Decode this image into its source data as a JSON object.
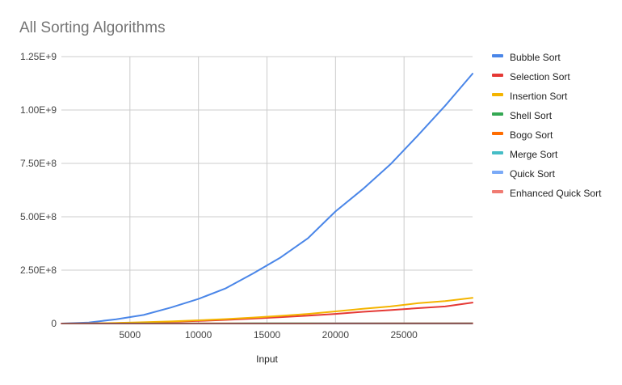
{
  "chart_data": {
    "type": "line",
    "title": "All Sorting Algorithms",
    "xlabel": "Input",
    "ylabel": "",
    "xlim": [
      0,
      30000
    ],
    "ylim": [
      0,
      1250000000
    ],
    "x_ticks": [
      5000,
      10000,
      15000,
      20000,
      25000
    ],
    "y_ticks": [
      {
        "value": 0,
        "label": "0"
      },
      {
        "value": 250000000,
        "label": "2.50E+8"
      },
      {
        "value": 500000000,
        "label": "5.00E+8"
      },
      {
        "value": 750000000,
        "label": "7.50E+8"
      },
      {
        "value": 1000000000,
        "label": "1.00E+9"
      },
      {
        "value": 1250000000,
        "label": "1.25E+9"
      }
    ],
    "grid": true,
    "legend_position": "right",
    "x": [
      0,
      2000,
      4000,
      6000,
      8000,
      10000,
      12000,
      14000,
      16000,
      18000,
      20000,
      22000,
      24000,
      26000,
      28000,
      30000
    ],
    "series": [
      {
        "name": "Bubble Sort",
        "color": "#4a86e8",
        "values": [
          0,
          5000000,
          20000000,
          40000000,
          75000000,
          115000000,
          165000000,
          235000000,
          310000000,
          400000000,
          525000000,
          630000000,
          745000000,
          880000000,
          1020000000,
          1170000000
        ]
      },
      {
        "name": "Selection Sort",
        "color": "#e53935",
        "values": [
          0,
          500000,
          2000000,
          4000000,
          8000000,
          12000000,
          17000000,
          23000000,
          30000000,
          37000000,
          45000000,
          55000000,
          63000000,
          72000000,
          80000000,
          98000000
        ]
      },
      {
        "name": "Insertion Sort",
        "color": "#f4b400",
        "values": [
          0,
          500000,
          2500000,
          6000000,
          10000000,
          15000000,
          21000000,
          28000000,
          36000000,
          45000000,
          57000000,
          69000000,
          80000000,
          95000000,
          105000000,
          120000000
        ]
      },
      {
        "name": "Shell Sort",
        "color": "#34a853",
        "values": [
          0,
          50000,
          100000,
          200000,
          300000,
          400000,
          500000,
          600000,
          700000,
          800000,
          900000,
          1000000,
          1100000,
          1200000,
          1300000,
          1400000
        ]
      },
      {
        "name": "Bogo Sort",
        "color": "#ff6d01",
        "values": [
          0,
          50000,
          100000,
          150000,
          200000,
          250000,
          300000,
          350000,
          400000,
          450000,
          500000,
          550000,
          600000,
          650000,
          700000,
          750000
        ]
      },
      {
        "name": "Merge Sort",
        "color": "#46bdc6",
        "values": [
          0,
          30000,
          60000,
          90000,
          120000,
          150000,
          180000,
          210000,
          240000,
          270000,
          300000,
          330000,
          360000,
          390000,
          420000,
          450000
        ]
      },
      {
        "name": "Quick Sort",
        "color": "#7baaf7",
        "values": [
          0,
          20000,
          40000,
          60000,
          80000,
          100000,
          120000,
          140000,
          160000,
          180000,
          200000,
          220000,
          240000,
          260000,
          280000,
          300000
        ]
      },
      {
        "name": "Enhanced Quick Sort",
        "color": "#f07b72",
        "values": [
          0,
          20000,
          40000,
          60000,
          80000,
          100000,
          120000,
          140000,
          160000,
          180000,
          200000,
          220000,
          240000,
          260000,
          280000,
          300000
        ]
      }
    ]
  }
}
